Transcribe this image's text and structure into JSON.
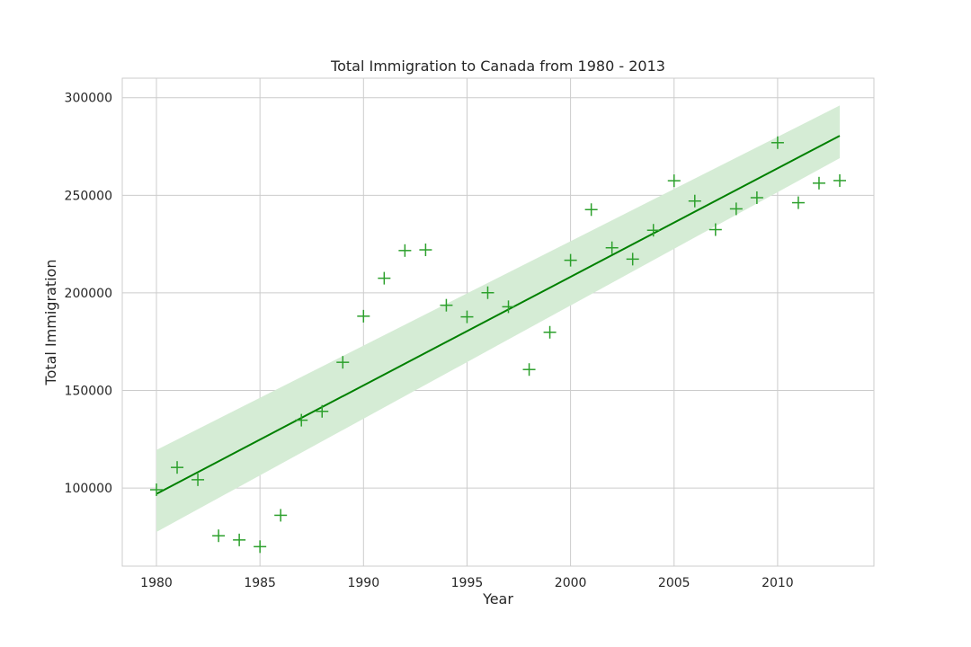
{
  "chart_data": {
    "type": "scatter",
    "title": "Total Immigration to Canada from 1980 - 2013",
    "xlabel": "Year",
    "ylabel": "Total Immigration",
    "xlim": [
      1978.35,
      2014.65
    ],
    "ylim": [
      60000,
      310000
    ],
    "xticks": [
      1980,
      1985,
      1990,
      1995,
      2000,
      2005,
      2010
    ],
    "yticks": [
      100000,
      150000,
      200000,
      250000,
      300000
    ],
    "grid": true,
    "marker": "+",
    "colors": {
      "points": "#2ca02c",
      "line": "#008000",
      "band": "#d5ecd5"
    },
    "series": [
      {
        "x": [
          1980,
          1981,
          1982,
          1983,
          1984,
          1985,
          1986,
          1987,
          1988,
          1989,
          1990,
          1991,
          1992,
          1993,
          1994,
          1995,
          1996,
          1997,
          1998,
          1999,
          2000,
          2001,
          2002,
          2003,
          2004,
          2005,
          2006,
          2007,
          2008,
          2009,
          2010,
          2011,
          2012,
          2013
        ],
        "y": [
          99137,
          110563,
          104271,
          75550,
          73417,
          69978,
          86048,
          134771,
          139306,
          164432,
          188054,
          207509,
          221687,
          222049,
          193665,
          187712,
          200085,
          192885,
          160727,
          179818,
          216712,
          242658,
          223111,
          217297,
          232083,
          257457,
          247057,
          232405,
          243047,
          248768,
          276956,
          246194,
          256222,
          257537
        ]
      }
    ],
    "regression": {
      "x": [
        1980,
        2013
      ],
      "y": [
        97000,
        280500
      ],
      "ci_lower": [
        77500,
        269000
      ],
      "ci_upper": [
        119500,
        296000
      ]
    }
  }
}
